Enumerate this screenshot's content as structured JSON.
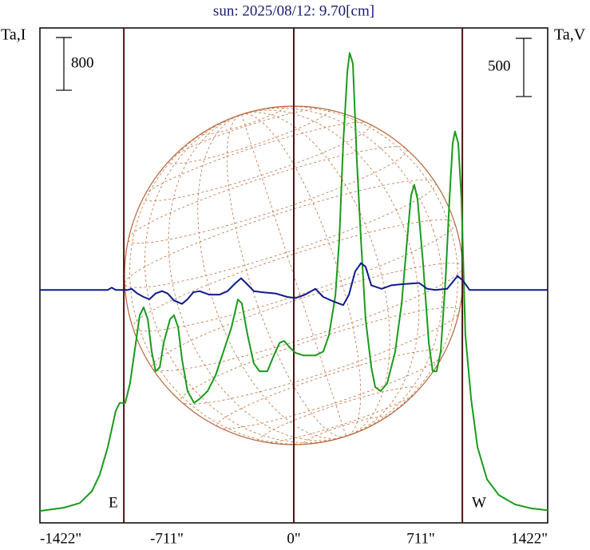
{
  "chart_data": {
    "type": "line",
    "title": "sun: 2025/08/12: 9.70[cm]",
    "ylabel": "Ta,I",
    "y2label": "Ta,V",
    "xlim": [
      -1422,
      1422
    ],
    "xticks": [
      {
        "value": -1422,
        "label": "-1422\""
      },
      {
        "value": -711,
        "label": "-711\""
      },
      {
        "value": 0,
        "label": "0\""
      },
      {
        "value": 711,
        "label": "711\""
      },
      {
        "value": 1422,
        "label": "1422\""
      }
    ],
    "ylim": [
      -180,
      7330
    ],
    "y2lim": [
      -2000,
      2250
    ],
    "scale_bar": 800,
    "y2_scale_bar": 500,
    "vlines": [
      -952,
      0,
      944
    ],
    "annotations": [
      "E",
      "W"
    ],
    "series": [
      {
        "color": "#1b9a1b",
        "axis": "y",
        "x": [
          -1422,
          -1288,
          -1199,
          -1131,
          -1087,
          -1042,
          -997,
          -975,
          -944,
          -917,
          -885,
          -863,
          -841,
          -818,
          -796,
          -774,
          -751,
          -729,
          -693,
          -671,
          -648,
          -626,
          -595,
          -559,
          -528,
          -483,
          -438,
          -394,
          -349,
          -313,
          -291,
          -259,
          -224,
          -192,
          -148,
          -112,
          -80,
          -54,
          -22,
          9,
          54,
          121,
          165,
          197,
          233,
          255,
          277,
          300,
          313,
          331,
          353,
          376,
          402,
          434,
          456,
          487,
          523,
          568,
          604,
          635,
          657,
          675,
          693,
          724,
          756,
          778,
          800,
          823,
          850,
          872,
          890,
          903,
          921,
          939,
          961,
          993,
          1029,
          1082,
          1149,
          1239,
          1328,
          1422
        ],
        "values": [
          0,
          50,
          120,
          300,
          550,
          970,
          1520,
          1640,
          1640,
          1940,
          2550,
          2970,
          3090,
          2910,
          2420,
          2120,
          2180,
          2550,
          2910,
          2970,
          2790,
          2300,
          1820,
          1640,
          1700,
          1820,
          2060,
          2420,
          2790,
          3210,
          3150,
          2670,
          2240,
          2120,
          2120,
          2360,
          2550,
          2580,
          2480,
          2400,
          2360,
          2360,
          2420,
          2670,
          3270,
          4120,
          5580,
          6670,
          6950,
          6790,
          5330,
          4120,
          2910,
          2180,
          1880,
          1820,
          1940,
          2420,
          3150,
          4120,
          4790,
          4950,
          4730,
          3760,
          2550,
          2120,
          2120,
          2420,
          3520,
          4730,
          5580,
          5760,
          5580,
          4730,
          2670,
          1700,
          970,
          480,
          240,
          100,
          40,
          10
        ]
      },
      {
        "color": "#101a8c",
        "axis": "y2",
        "x": [
          -1422,
          -1042,
          -1020,
          -997,
          -930,
          -908,
          -877,
          -841,
          -809,
          -774,
          -738,
          -707,
          -671,
          -626,
          -595,
          -563,
          -528,
          -474,
          -416,
          -371,
          -326,
          -295,
          -268,
          -224,
          -170,
          -103,
          -36,
          9,
          63,
          121,
          165,
          224,
          277,
          309,
          344,
          376,
          402,
          434,
          492,
          546,
          613,
          702,
          747,
          792,
          859,
          917,
          948,
          984,
          1422
        ],
        "values": [
          0,
          0,
          20,
          0,
          0,
          10,
          -30,
          -60,
          -80,
          -30,
          -10,
          -30,
          -90,
          -120,
          -80,
          -20,
          -10,
          -40,
          -40,
          -10,
          60,
          100,
          60,
          -10,
          -20,
          -30,
          -60,
          -70,
          -40,
          10,
          -60,
          -100,
          -130,
          -40,
          160,
          230,
          200,
          40,
          10,
          40,
          50,
          60,
          10,
          0,
          10,
          120,
          80,
          0,
          0
        ]
      }
    ]
  }
}
